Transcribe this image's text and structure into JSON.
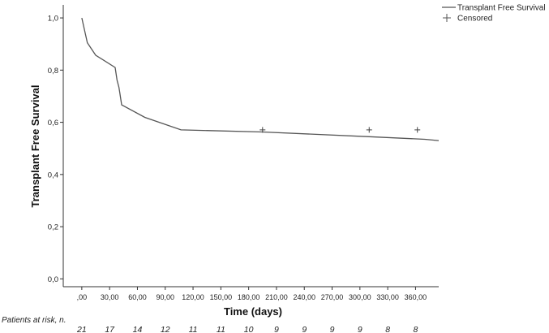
{
  "chart_data": {
    "type": "line",
    "title": "",
    "xlabel": "Time (days)",
    "ylabel": "Transplant Free Survival",
    "xlim": [
      -20,
      385
    ],
    "ylim": [
      -0.03,
      1.05
    ],
    "x_ticks": [
      0,
      30,
      60,
      90,
      120,
      150,
      180,
      210,
      240,
      270,
      300,
      330,
      360
    ],
    "x_tick_labels": [
      ",00",
      "30,00",
      "60,00",
      "90,00",
      "120,00",
      "150,00",
      "180,00",
      "210,00",
      "240,00",
      "270,00",
      "300,00",
      "330,00",
      "360,00"
    ],
    "y_ticks": [
      0.0,
      0.2,
      0.4,
      0.6,
      0.8,
      1.0
    ],
    "y_tick_labels": [
      "0,0",
      "0,2",
      "0,4",
      "0,6",
      "0,8",
      "1,0"
    ],
    "legend_position": "top-right",
    "series": [
      {
        "name": "Transplant Free Survival",
        "x": [
          0,
          6,
          15,
          36,
          38,
          40,
          41,
          43,
          68,
          107,
          195,
          310,
          370,
          385
        ],
        "y": [
          1.0,
          0.905,
          0.857,
          0.81,
          0.762,
          0.735,
          0.714,
          0.667,
          0.619,
          0.571,
          0.563,
          0.545,
          0.535,
          0.53
        ],
        "color": "#555555"
      }
    ],
    "censored": {
      "name": "Censored",
      "x": [
        195,
        310,
        362
      ],
      "y": [
        0.571,
        0.571,
        0.571
      ]
    },
    "risk_table": {
      "label": "Patients at risk, n.",
      "counts": [
        "21",
        "17",
        "14",
        "12",
        "11",
        "11",
        "10",
        "9",
        "9",
        "9",
        "9",
        "8",
        "8"
      ]
    }
  }
}
